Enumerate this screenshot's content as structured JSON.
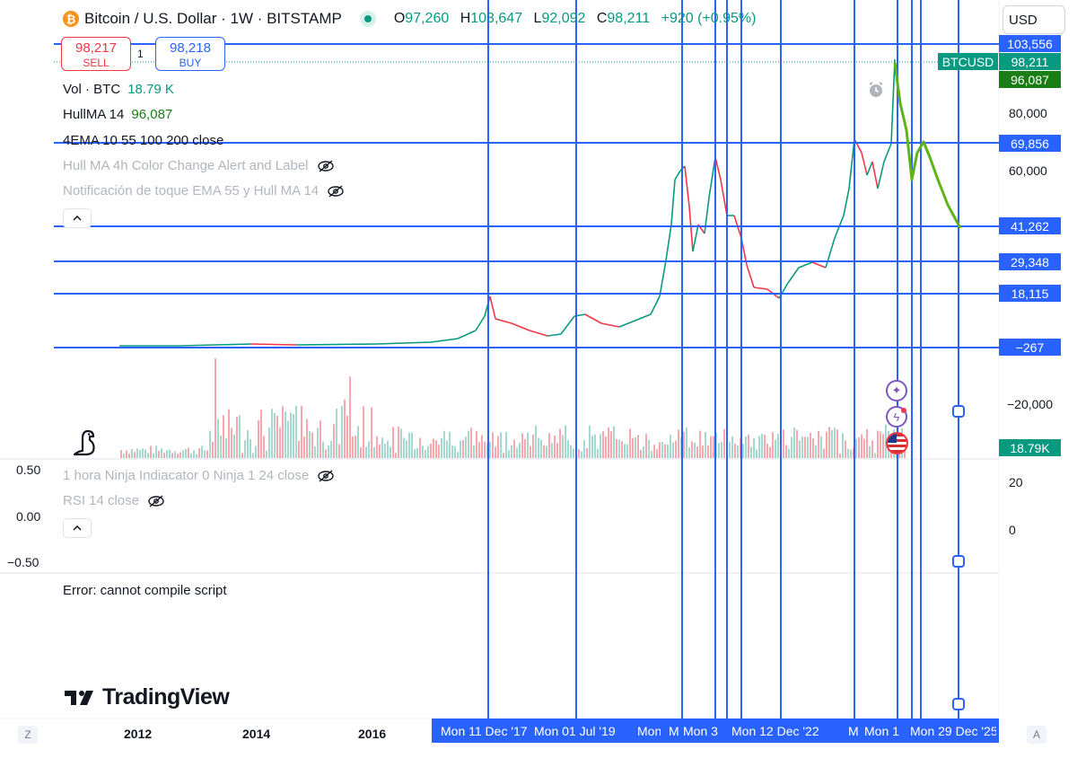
{
  "header": {
    "symbol_title": "Bitcoin / U.S. Dollar · 1W · BITSTAMP",
    "ohlc": {
      "open_label": "O",
      "open": "97,260",
      "high_label": "H",
      "high": "103,647",
      "low_label": "L",
      "low": "92,092",
      "close_label": "C",
      "close": "98,211",
      "change": "+920 (+0.95%)"
    },
    "currency": "USD"
  },
  "trade": {
    "sell_price": "98,217",
    "sell_label": "SELL",
    "spread": "1",
    "buy_price": "98,218",
    "buy_label": "BUY"
  },
  "legend": {
    "vol_name": "Vol · BTC",
    "vol_value": "18.79 K",
    "hull_name": "HullMA 14",
    "hull_value": "96,087",
    "ema_name": "4EMA 10 55 100 200 close",
    "hull_alert": "Hull MA 4h Color Change Alert and Label",
    "ema_touch": "Notificación de toque EMA 55 y Hull MA 14",
    "ninja": "1 hora Ninja Indiacator 0 Ninja 1 24 close",
    "rsi": "RSI 14 close"
  },
  "price_axis": {
    "ticks": [
      "80,000",
      "60,000",
      "−20,000"
    ],
    "tags": [
      {
        "label": "103,556",
        "color": "#2962ff"
      },
      {
        "label": "BTCUSD",
        "color": "#089981"
      },
      {
        "label": "98,211",
        "color": "#089981"
      },
      {
        "label": "96,087",
        "color": "#1b7d15"
      },
      {
        "label": "69,856",
        "color": "#2962ff"
      },
      {
        "label": "41,262",
        "color": "#2962ff"
      },
      {
        "label": "29,348",
        "color": "#2962ff"
      },
      {
        "label": "18,115",
        "color": "#2962ff"
      },
      {
        "label": "−267",
        "color": "#2962ff"
      },
      {
        "label": "18.79K",
        "color": "#089981"
      }
    ]
  },
  "pane_axis": {
    "left_ticks": [
      "0.50",
      "0.00",
      "−0.50"
    ],
    "right_ticks": [
      "20",
      "0"
    ]
  },
  "horizontal_line_levels": [
    103556,
    69856,
    41262,
    29348,
    18115,
    -267
  ],
  "time_axis": {
    "years": [
      "2012",
      "2014",
      "2016"
    ],
    "highlight": [
      "Mon 11 Dec '17",
      "Mon 01 Jul '19",
      "Mon",
      "M",
      "Mon 3",
      "Mon 12 Dec '22",
      "M",
      "Mon 1",
      "Mon 29 Dec '25"
    ],
    "left_corner": "Z",
    "right_corner": "A"
  },
  "error_text": "Error: cannot compile script",
  "brand": "TradingView",
  "colors": {
    "up": "#089981",
    "down": "#f23645",
    "drawing": "#2962ff",
    "hull": "#1b7d15",
    "projection": "#5fb317"
  },
  "icons": [
    "bitcoin-logo",
    "eye-hidden-icon",
    "chevron-up-icon",
    "alarm-clock-icon",
    "sparkle-icon",
    "lightning-icon",
    "us-flag-icon",
    "dinosaur-icon",
    "tradingview-logo"
  ]
}
